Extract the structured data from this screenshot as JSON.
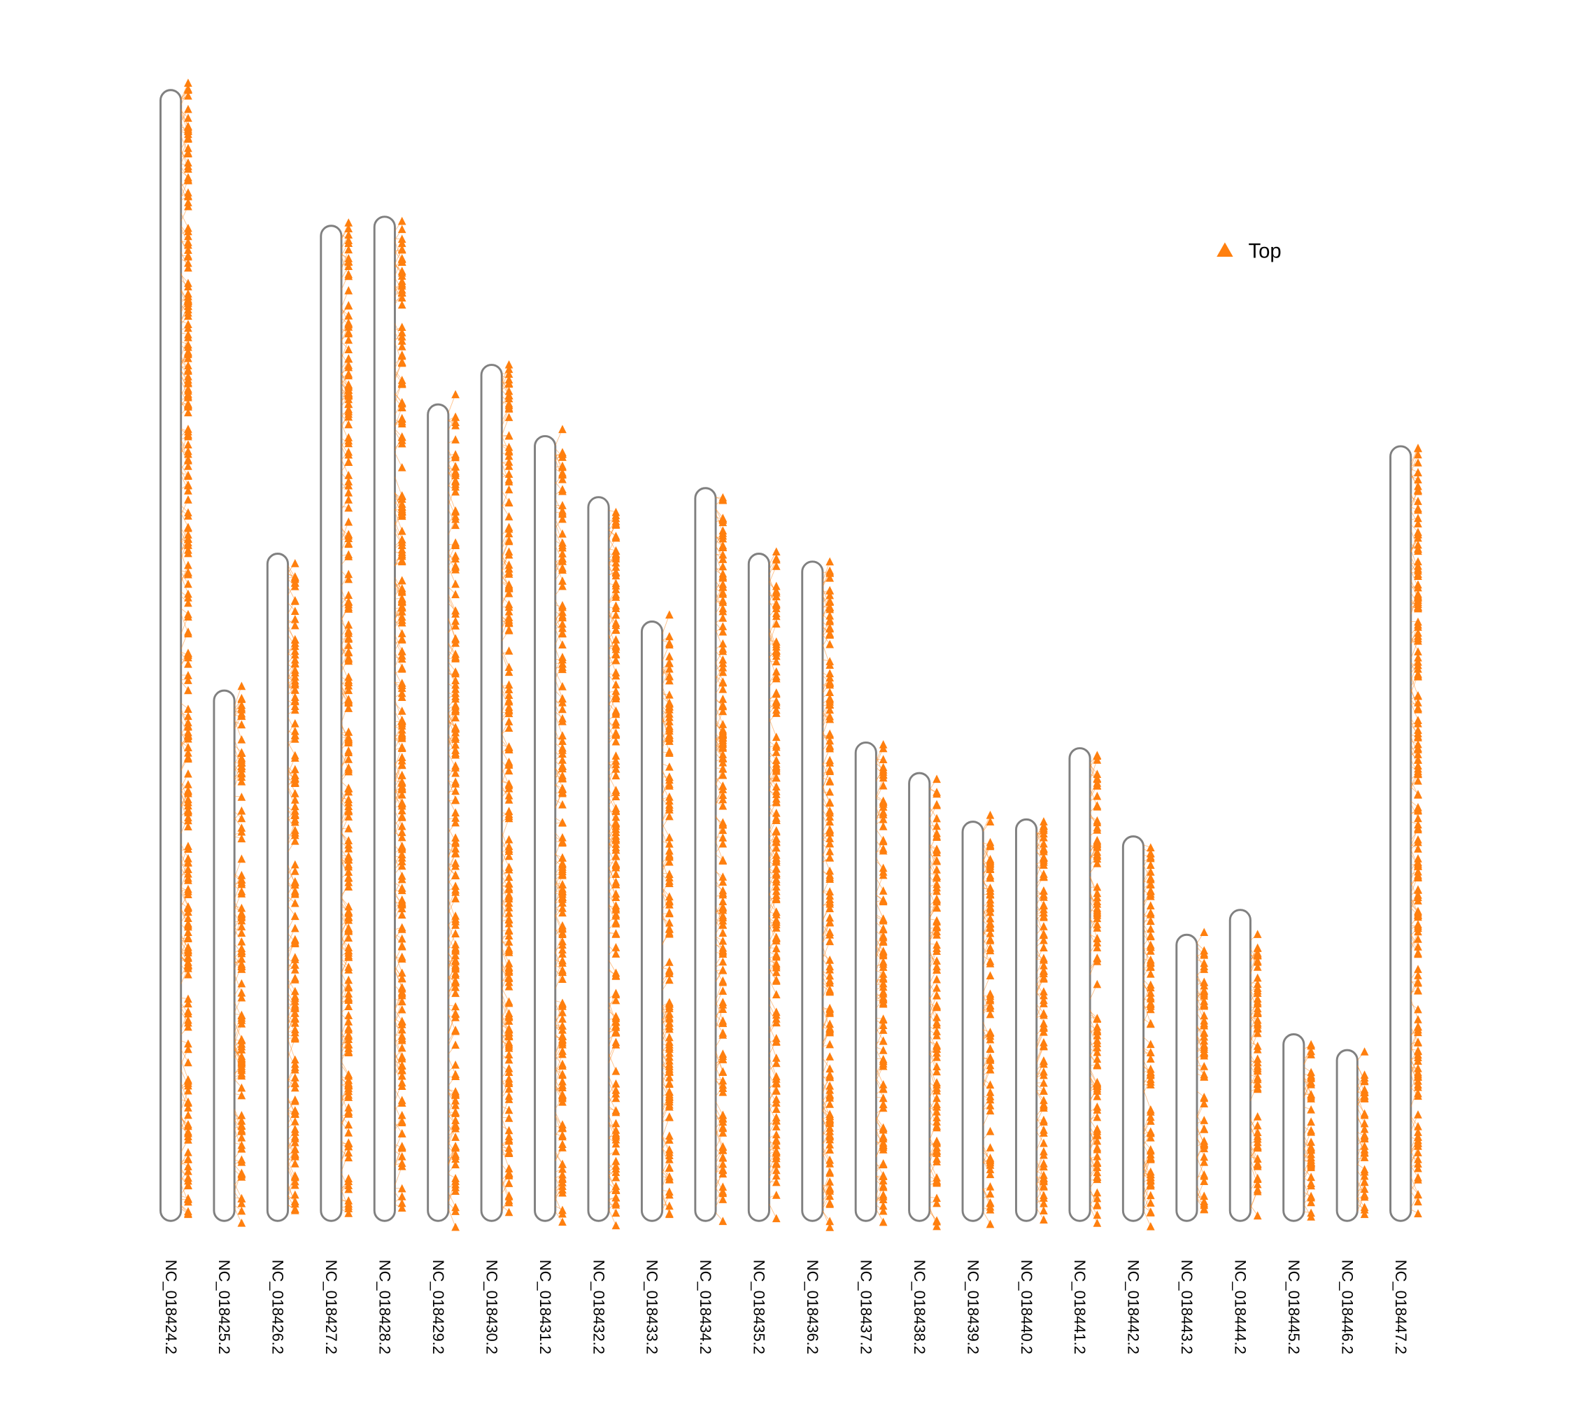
{
  "chart_data": {
    "type": "ideogram",
    "chromosomes": [
      {
        "name": "NC_018424.2",
        "relative_length": 1.0
      },
      {
        "name": "NC_018425.2",
        "relative_length": 0.469
      },
      {
        "name": "NC_018426.2",
        "relative_length": 0.59
      },
      {
        "name": "NC_018427.2",
        "relative_length": 0.88
      },
      {
        "name": "NC_018428.2",
        "relative_length": 0.888
      },
      {
        "name": "NC_018429.2",
        "relative_length": 0.722
      },
      {
        "name": "NC_018430.2",
        "relative_length": 0.757
      },
      {
        "name": "NC_018431.2",
        "relative_length": 0.694
      },
      {
        "name": "NC_018432.2",
        "relative_length": 0.64
      },
      {
        "name": "NC_018433.2",
        "relative_length": 0.53
      },
      {
        "name": "NC_018434.2",
        "relative_length": 0.648
      },
      {
        "name": "NC_018435.2",
        "relative_length": 0.59
      },
      {
        "name": "NC_018436.2",
        "relative_length": 0.583
      },
      {
        "name": "NC_018437.2",
        "relative_length": 0.423
      },
      {
        "name": "NC_018438.2",
        "relative_length": 0.396
      },
      {
        "name": "NC_018439.2",
        "relative_length": 0.353
      },
      {
        "name": "NC_018440.2",
        "relative_length": 0.355
      },
      {
        "name": "NC_018441.2",
        "relative_length": 0.418
      },
      {
        "name": "NC_018442.2",
        "relative_length": 0.34
      },
      {
        "name": "NC_018443.2",
        "relative_length": 0.253
      },
      {
        "name": "NC_018444.2",
        "relative_length": 0.275
      },
      {
        "name": "NC_018445.2",
        "relative_length": 0.165
      },
      {
        "name": "NC_018446.2",
        "relative_length": 0.151
      },
      {
        "name": "NC_018447.2",
        "relative_length": 0.685
      }
    ],
    "marker_shape": "triangle",
    "legend": {
      "entries": [
        "Top"
      ],
      "placement": "top-right"
    },
    "colors": {
      "marker": "#FF7F0E",
      "chromosome_outline": "#808080"
    },
    "grid": false
  }
}
